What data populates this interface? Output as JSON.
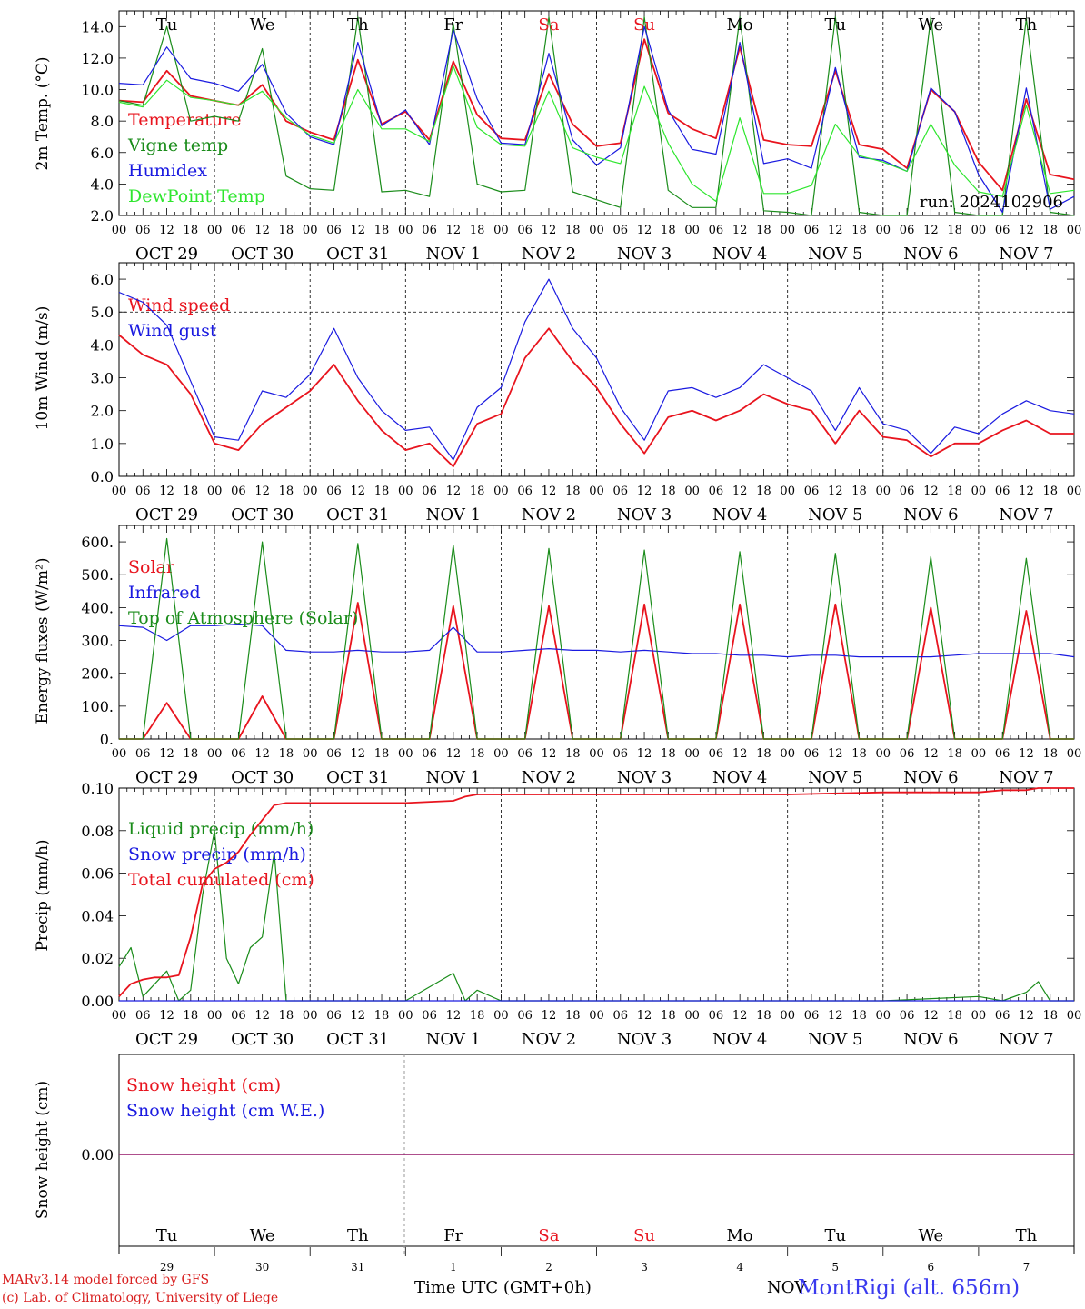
{
  "chart_data": [
    {
      "type": "line",
      "panel": "temperature",
      "ylabel": "2m Temp. (°C)",
      "ylim": [
        2,
        15
      ],
      "yticks": [
        "2.0",
        "4.0",
        "6.0",
        "8.0",
        "10.0",
        "12.0",
        "14.0"
      ],
      "annotation": "run: 2024102906",
      "x_hours": [
        0,
        6,
        12,
        18,
        24,
        30,
        36,
        42,
        48,
        54,
        60,
        66,
        72,
        78,
        84,
        90,
        96,
        102,
        108,
        114,
        120,
        126,
        132,
        138,
        144,
        150,
        156,
        162,
        168,
        174,
        180,
        186,
        192,
        198,
        204,
        210,
        216,
        222,
        228,
        234,
        240
      ],
      "series": [
        {
          "name": "Temperature",
          "color": "#e8141e",
          "values": [
            9.3,
            9.2,
            11.2,
            9.6,
            9.3,
            9.0,
            10.3,
            8.0,
            7.3,
            6.8,
            11.9,
            7.8,
            8.6,
            6.8,
            11.8,
            8.4,
            6.9,
            6.8,
            11.0,
            7.8,
            6.4,
            6.6,
            13.2,
            8.5,
            7.5,
            6.9,
            12.7,
            6.8,
            6.5,
            6.4,
            11.2,
            6.5,
            6.2,
            5.0,
            10.0,
            8.6,
            5.4,
            3.6,
            9.4,
            4.6,
            4.3
          ]
        },
        {
          "name": "Vigne temp",
          "color": "#1a8c1a",
          "values": [
            9.3,
            9.0,
            14.0,
            8.0,
            8.3,
            8.0,
            12.6,
            4.5,
            3.7,
            3.6,
            14.6,
            3.5,
            3.6,
            3.2,
            14.2,
            4.0,
            3.5,
            3.6,
            14.6,
            3.5,
            3.0,
            2.5,
            14.6,
            3.6,
            2.5,
            2.5,
            14.6,
            2.3,
            2.2,
            2.0,
            14.6,
            2.2,
            2.0,
            2.0,
            14.6,
            2.2,
            2.0,
            2.0,
            14.5,
            2.2,
            2.0
          ]
        },
        {
          "name": "Humidex",
          "color": "#1a1ae0",
          "values": [
            10.4,
            10.3,
            12.7,
            10.7,
            10.4,
            9.9,
            11.6,
            8.5,
            7.0,
            6.5,
            13.0,
            7.7,
            8.7,
            6.5,
            13.8,
            9.4,
            6.6,
            6.5,
            12.3,
            6.8,
            5.2,
            6.3,
            14.0,
            8.7,
            6.2,
            5.9,
            13.0,
            5.3,
            5.6,
            5.0,
            11.4,
            5.7,
            5.5,
            4.8,
            10.1,
            8.6,
            4.6,
            2.2,
            10.1,
            2.4,
            3.2
          ]
        },
        {
          "name": "DewPoint Temp",
          "color": "#2ee62e",
          "values": [
            9.2,
            8.9,
            10.6,
            9.5,
            9.3,
            9.0,
            9.9,
            8.2,
            7.1,
            6.6,
            10.0,
            7.5,
            7.5,
            6.7,
            11.5,
            7.6,
            6.5,
            6.4,
            9.9,
            6.3,
            5.7,
            5.3,
            10.2,
            6.6,
            4.0,
            2.9,
            8.2,
            3.4,
            3.4,
            3.9,
            7.8,
            5.8,
            5.4,
            4.8,
            7.8,
            5.2,
            3.5,
            3.2,
            9.0,
            3.4,
            3.6
          ]
        }
      ]
    },
    {
      "type": "line",
      "panel": "wind",
      "ylabel": "10m Wind (m/s)",
      "ylim": [
        0,
        6.5
      ],
      "yticks": [
        "0.0",
        "1.0",
        "2.0",
        "3.0",
        "4.0",
        "5.0",
        "6.0"
      ],
      "reference_line": 5,
      "x_hours": [
        0,
        6,
        12,
        18,
        24,
        30,
        36,
        42,
        48,
        54,
        60,
        66,
        72,
        78,
        84,
        90,
        96,
        102,
        108,
        114,
        120,
        126,
        132,
        138,
        144,
        150,
        156,
        162,
        168,
        174,
        180,
        186,
        192,
        198,
        204,
        210,
        216,
        222,
        228,
        234,
        240
      ],
      "series": [
        {
          "name": "Wind speed",
          "color": "#e8141e",
          "values": [
            4.3,
            3.7,
            3.4,
            2.5,
            1.0,
            0.8,
            1.6,
            2.1,
            2.6,
            3.4,
            2.3,
            1.4,
            0.8,
            1.0,
            0.3,
            1.6,
            1.9,
            3.6,
            4.5,
            3.5,
            2.7,
            1.6,
            0.7,
            1.8,
            2.0,
            1.7,
            2.0,
            2.5,
            2.2,
            2.0,
            1.0,
            2.0,
            1.2,
            1.1,
            0.6,
            1.0,
            1.0,
            1.4,
            1.7,
            1.3,
            1.3
          ]
        },
        {
          "name": "Wind gust",
          "color": "#1a1ae0",
          "values": [
            5.6,
            5.3,
            4.6,
            2.9,
            1.2,
            1.1,
            2.6,
            2.4,
            3.1,
            4.5,
            3.0,
            2.0,
            1.4,
            1.5,
            0.5,
            2.1,
            2.7,
            4.7,
            6.0,
            4.5,
            3.6,
            2.1,
            1.1,
            2.6,
            2.7,
            2.4,
            2.7,
            3.4,
            3.0,
            2.6,
            1.4,
            2.7,
            1.6,
            1.4,
            0.7,
            1.5,
            1.3,
            1.9,
            2.3,
            2.0,
            1.9
          ]
        }
      ]
    },
    {
      "type": "line",
      "panel": "energy",
      "ylabel": "Energy fluxes (W/m²)",
      "ylim": [
        0,
        650
      ],
      "yticks": [
        "0.",
        "100.",
        "200.",
        "300.",
        "400.",
        "500.",
        "600."
      ],
      "x_hours": [
        0,
        6,
        12,
        18,
        24,
        30,
        36,
        42,
        48,
        54,
        60,
        66,
        72,
        78,
        84,
        90,
        96,
        102,
        108,
        114,
        120,
        126,
        132,
        138,
        144,
        150,
        156,
        162,
        168,
        174,
        180,
        186,
        192,
        198,
        204,
        210,
        216,
        222,
        228,
        234,
        240
      ],
      "series": [
        {
          "name": "Solar",
          "color": "#e8141e",
          "values": [
            0,
            0,
            110,
            0,
            0,
            0,
            130,
            0,
            0,
            0,
            415,
            0,
            0,
            0,
            405,
            0,
            0,
            0,
            405,
            0,
            0,
            0,
            410,
            0,
            0,
            0,
            410,
            0,
            0,
            0,
            410,
            0,
            0,
            0,
            400,
            0,
            0,
            0,
            390,
            0,
            0
          ]
        },
        {
          "name": "Infrared",
          "color": "#1a1ae0",
          "values": [
            345,
            340,
            300,
            345,
            345,
            350,
            345,
            270,
            265,
            265,
            270,
            265,
            265,
            270,
            340,
            265,
            265,
            270,
            275,
            270,
            270,
            265,
            270,
            265,
            260,
            260,
            255,
            255,
            250,
            255,
            255,
            250,
            250,
            250,
            250,
            255,
            260,
            260,
            260,
            260,
            250
          ]
        },
        {
          "name": "Top of Atmosphere (Solar)",
          "color": "#1a8c1a",
          "values": [
            0,
            0,
            610,
            0,
            0,
            0,
            600,
            0,
            0,
            0,
            595,
            0,
            0,
            0,
            590,
            0,
            0,
            0,
            580,
            0,
            0,
            0,
            575,
            0,
            0,
            0,
            570,
            0,
            0,
            0,
            565,
            0,
            0,
            0,
            555,
            0,
            0,
            0,
            550,
            0,
            0
          ]
        }
      ]
    },
    {
      "type": "line",
      "panel": "precipitation",
      "ylabel": "Precip (mm/h)",
      "ylim": [
        0,
        0.1
      ],
      "yticks": [
        "0.00",
        "0.02",
        "0.04",
        "0.06",
        "0.08",
        "0.10"
      ],
      "x_hours": [
        0,
        3,
        6,
        9,
        12,
        15,
        18,
        21,
        24,
        27,
        30,
        33,
        36,
        39,
        42,
        48,
        60,
        72,
        84,
        87,
        90,
        96,
        108,
        120,
        144,
        168,
        192,
        216,
        222,
        228,
        231,
        234,
        240
      ],
      "series": [
        {
          "name": "Liquid precip (mm/h)",
          "color": "#1a8c1a",
          "values": [
            0.016,
            0.025,
            0.002,
            0.008,
            0.014,
            0.0,
            0.005,
            0.05,
            0.08,
            0.02,
            0.008,
            0.025,
            0.03,
            0.07,
            0.0,
            0.0,
            0.0,
            0.0,
            0.013,
            0.0,
            0.005,
            0.0,
            0.0,
            0.0,
            0.0,
            0.0,
            0.0,
            0.002,
            0.0,
            0.004,
            0.009,
            0.0,
            0.0
          ]
        },
        {
          "name": "Snow precip (mm/h)",
          "color": "#1a1ae0",
          "values": [
            0,
            0,
            0,
            0,
            0,
            0,
            0,
            0,
            0,
            0,
            0,
            0,
            0,
            0,
            0,
            0,
            0,
            0,
            0,
            0,
            0,
            0,
            0,
            0,
            0,
            0,
            0,
            0,
            0,
            0,
            0,
            0,
            0
          ]
        },
        {
          "name": "Total cumulated (cm)",
          "color": "#e8141e",
          "values": [
            0.002,
            0.008,
            0.01,
            0.011,
            0.011,
            0.012,
            0.03,
            0.055,
            0.062,
            0.065,
            0.07,
            0.078,
            0.085,
            0.092,
            0.093,
            0.093,
            0.093,
            0.093,
            0.094,
            0.096,
            0.097,
            0.097,
            0.097,
            0.097,
            0.097,
            0.097,
            0.098,
            0.098,
            0.099,
            0.099,
            0.1,
            0.1,
            0.1
          ]
        }
      ]
    },
    {
      "type": "line",
      "panel": "snow",
      "ylabel": "Snow height (cm)",
      "yticks": [
        "0.00"
      ],
      "series": [
        {
          "name": "Snow height (cm)",
          "color": "#e8141e",
          "values": [
            0,
            0
          ]
        },
        {
          "name": "Snow height (cm W.E.)",
          "color": "#1a1ae0",
          "values": [
            0,
            0
          ]
        }
      ],
      "day_numbers": [
        "29",
        "30",
        "31",
        "1",
        "2",
        "3",
        "4",
        "5",
        "6",
        "7"
      ]
    }
  ],
  "hour_labels": [
    "00",
    "06",
    "12",
    "18"
  ],
  "date_labels": [
    "OCT 29",
    "OCT 30",
    "OCT 31",
    "NOV 1",
    "NOV 2",
    "NOV 3",
    "NOV 4",
    "NOV 5",
    "NOV 6",
    "NOV 7"
  ],
  "weekdays": [
    "Tu",
    "We",
    "Th",
    "Fr",
    "Sa",
    "Su",
    "Mo",
    "Tu",
    "We",
    "Th"
  ],
  "weekend_color": "#e8141e",
  "weekend_indices": [
    4,
    5
  ],
  "footer": {
    "credit_line1": "MARv3.14 model forced by GFS",
    "credit_line2": "(c) Lab. of Climatology, University of Liege",
    "axis_title": "Time UTC (GMT+0h)",
    "month": "NOV",
    "station": "MontRigi (alt. 656m)"
  }
}
